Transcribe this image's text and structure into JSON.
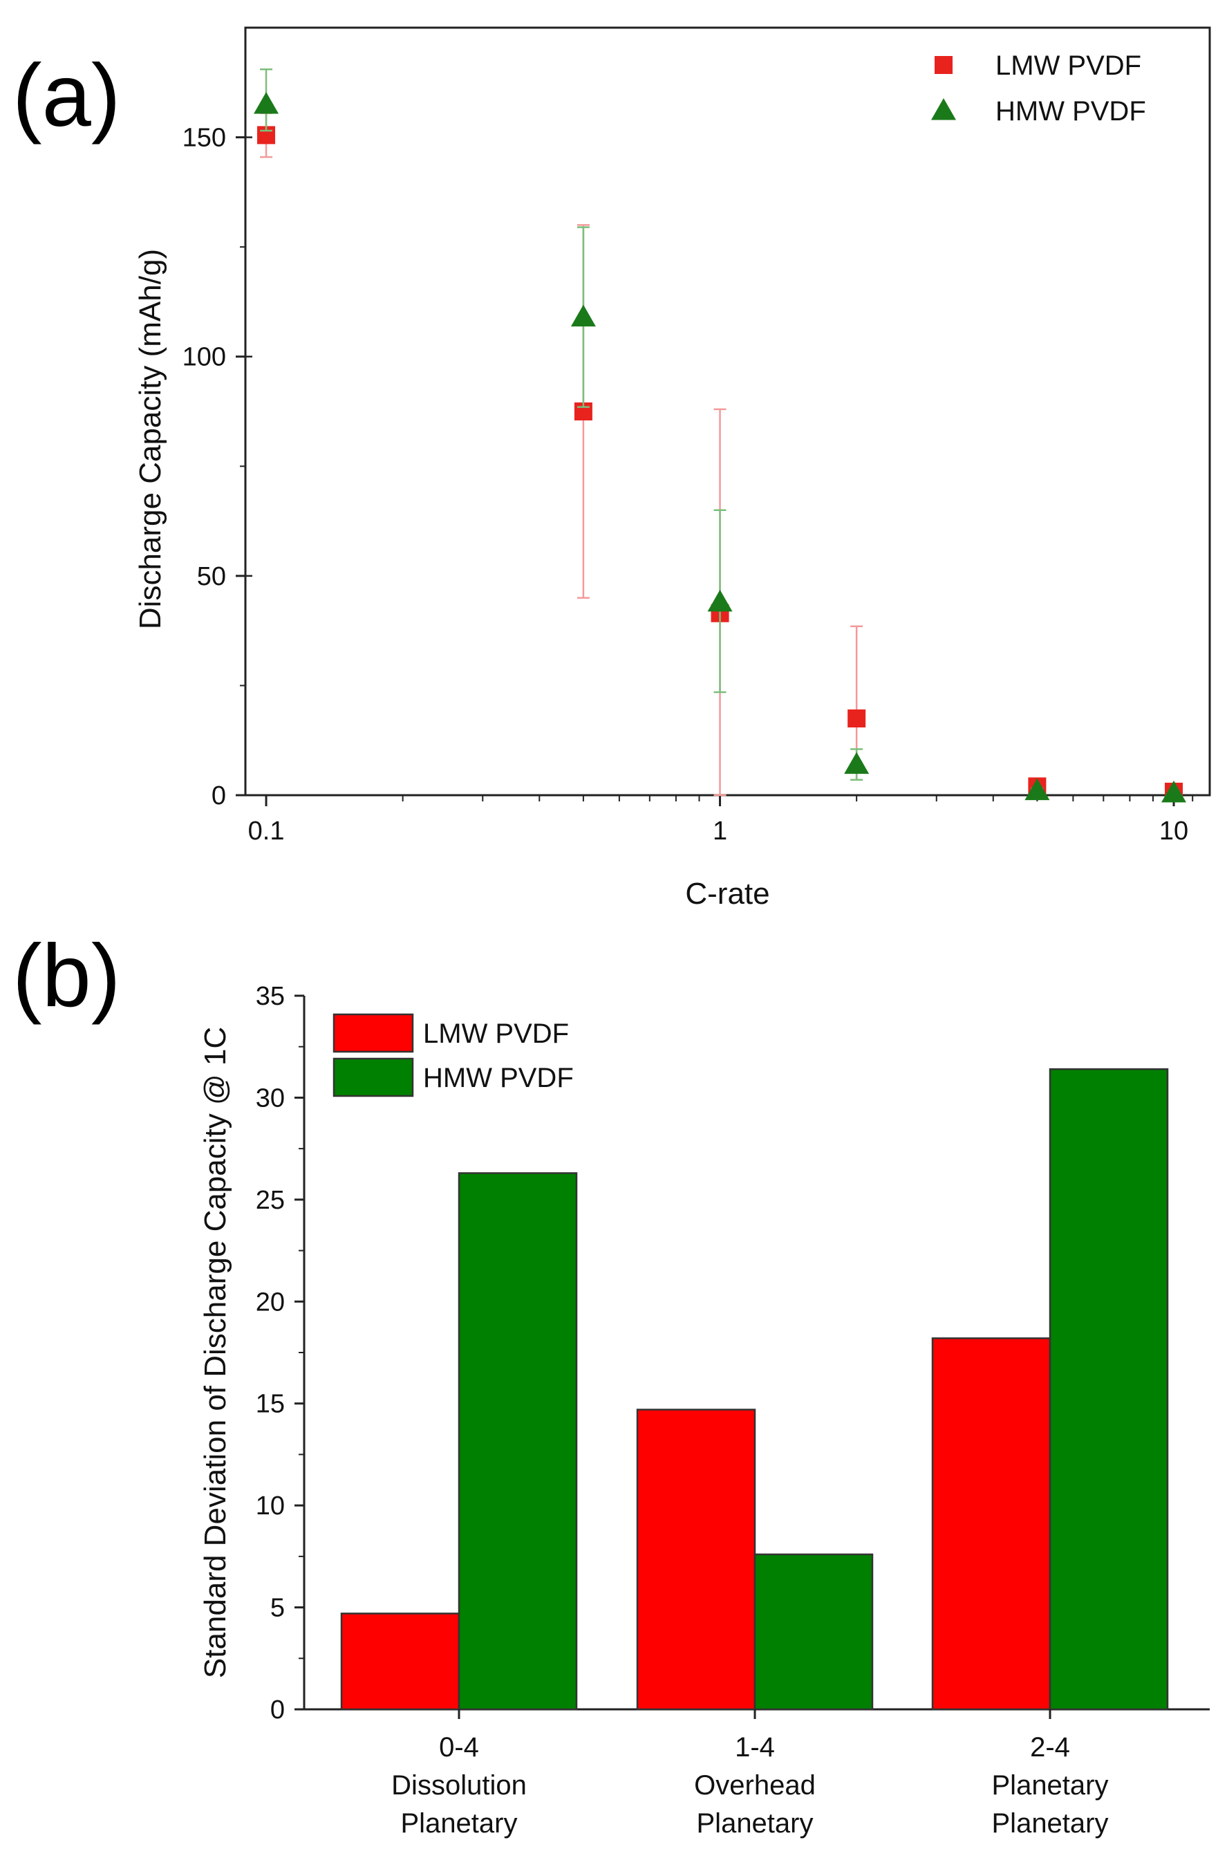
{
  "chart_data": [
    {
      "panel": "(a)",
      "type": "scatter",
      "title": "",
      "xlabel": "C-rate",
      "ylabel": "Discharge Capacity (mAh/g)",
      "xscale": "log",
      "xlim": [
        0.09,
        12
      ],
      "ylim": [
        0,
        175
      ],
      "xticks": [
        0.1,
        1,
        10
      ],
      "xtick_labels": [
        "0.1",
        "1",
        "10"
      ],
      "yticks": [
        0,
        50,
        100,
        150
      ],
      "ytick_labels": [
        "0",
        "50",
        "100",
        "150"
      ],
      "legend_position": "top-right",
      "series": [
        {
          "name": "LMW PVDF",
          "marker": "square",
          "color": "#e8231e",
          "errorbar_color": "#f29a9a",
          "points": [
            {
              "x": 0.1,
              "y": 150.5,
              "lo": 145.5,
              "hi": 155.5
            },
            {
              "x": 0.5,
              "y": 87.5,
              "lo": 45,
              "hi": 130
            },
            {
              "x": 1,
              "y": 41.5,
              "lo": 0,
              "hi": 88
            },
            {
              "x": 2,
              "y": 17.5,
              "lo": 3.5,
              "hi": 38.5
            },
            {
              "x": 5,
              "y": 2,
              "lo": 1.5,
              "hi": 2.5
            },
            {
              "x": 10,
              "y": 0.8,
              "lo": 0.5,
              "hi": 1.1
            }
          ]
        },
        {
          "name": "HMW PVDF",
          "marker": "triangle",
          "color": "#1a7a1a",
          "errorbar_color": "#7bbf7b",
          "points": [
            {
              "x": 0.1,
              "y": 157.5,
              "lo": 151.5,
              "hi": 165.5
            },
            {
              "x": 0.5,
              "y": 109,
              "lo": 88.5,
              "hi": 129.5
            },
            {
              "x": 1,
              "y": 44,
              "lo": 23.5,
              "hi": 65
            },
            {
              "x": 2,
              "y": 7,
              "lo": 3.5,
              "hi": 10.5
            },
            {
              "x": 5,
              "y": 1,
              "lo": 0.5,
              "hi": 1.5
            },
            {
              "x": 10,
              "y": 0.5,
              "lo": 0.2,
              "hi": 0.8
            }
          ]
        }
      ]
    },
    {
      "panel": "(b)",
      "type": "bar",
      "title": "",
      "xlabel": "",
      "ylabel": "Standard Deviation of Discharge Capacity @ 1C",
      "ylim": [
        0,
        35
      ],
      "yticks": [
        0,
        5,
        10,
        15,
        20,
        25,
        30,
        35
      ],
      "ytick_labels": [
        "0",
        "5",
        "10",
        "15",
        "20",
        "25",
        "30",
        "35"
      ],
      "legend_position": "top-left",
      "categories": [
        [
          "0-4",
          "Dissolution",
          "Planetary"
        ],
        [
          "1-4",
          "Overhead",
          "Planetary"
        ],
        [
          "2-4",
          "Planetary",
          "Planetary"
        ]
      ],
      "series": [
        {
          "name": "LMW PVDF",
          "color": "#ff0000",
          "values": [
            4.7,
            14.7,
            18.2
          ]
        },
        {
          "name": "HMW PVDF",
          "color": "#008000",
          "values": [
            26.3,
            7.6,
            31.4
          ]
        }
      ]
    }
  ]
}
